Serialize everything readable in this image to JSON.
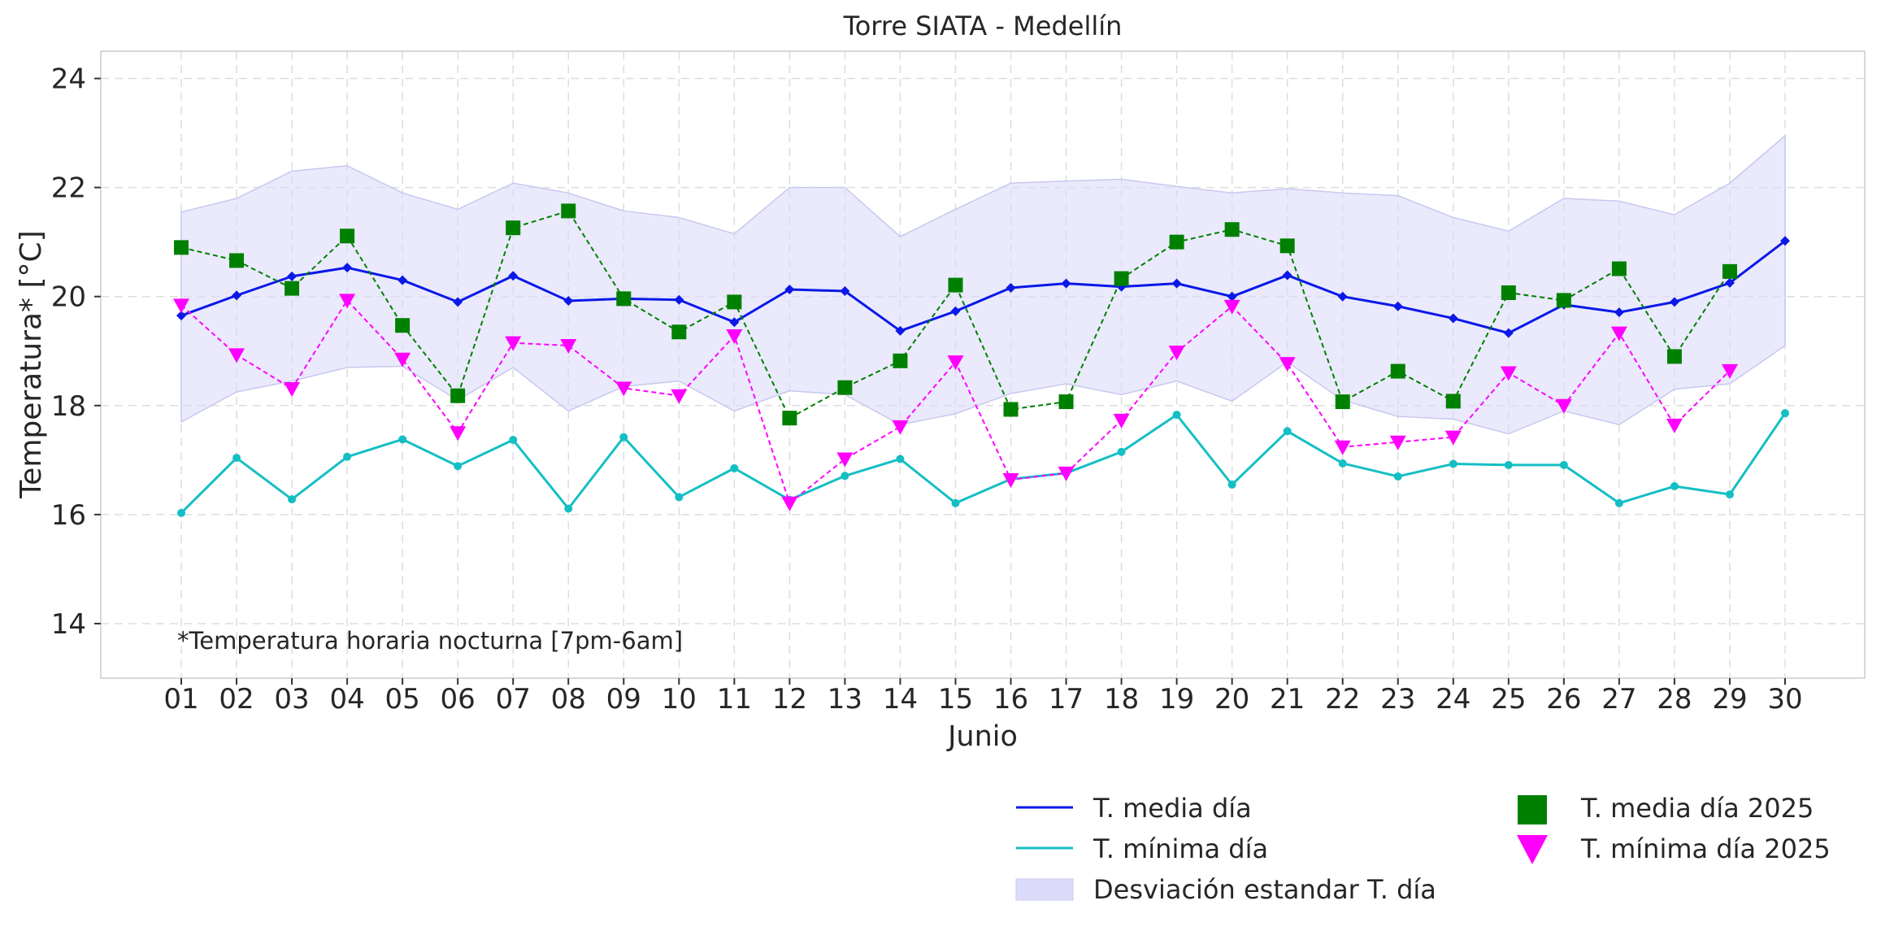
{
  "chart_data": {
    "type": "line",
    "title": "Torre SIATA - Medellín",
    "xlabel": "Junio",
    "ylabel": "Temperatura* [°C]",
    "annotation": "*Temperatura horaria nocturna [7pm-6am]",
    "ylim": [
      13,
      24.5
    ],
    "yticks": [
      14,
      16,
      18,
      20,
      22,
      24
    ],
    "grid": true,
    "legend_position": "bottom-right",
    "categories": [
      "01",
      "02",
      "03",
      "04",
      "05",
      "06",
      "07",
      "08",
      "09",
      "10",
      "11",
      "12",
      "13",
      "14",
      "15",
      "16",
      "17",
      "18",
      "19",
      "20",
      "21",
      "22",
      "23",
      "24",
      "25",
      "26",
      "27",
      "28",
      "29",
      "30"
    ],
    "band": {
      "name": "Desviación estandar T. día",
      "color": "#dcdcfa",
      "upper": [
        21.55,
        21.8,
        22.3,
        22.4,
        21.9,
        21.6,
        22.08,
        21.9,
        21.57,
        21.45,
        21.15,
        22.0,
        22.0,
        21.1,
        21.6,
        22.08,
        22.12,
        22.15,
        22.02,
        21.9,
        21.98,
        21.9,
        21.85,
        21.45,
        21.2,
        21.8,
        21.75,
        21.5,
        22.08,
        22.95
      ],
      "lower": [
        17.7,
        18.25,
        18.45,
        18.7,
        18.72,
        18.1,
        18.7,
        17.9,
        18.35,
        18.45,
        17.9,
        18.27,
        18.2,
        17.65,
        17.85,
        18.22,
        18.4,
        18.2,
        18.45,
        18.08,
        18.8,
        18.1,
        17.8,
        17.75,
        17.48,
        17.9,
        17.65,
        18.3,
        18.4,
        19.1
      ]
    },
    "series": [
      {
        "name": "T. media día",
        "style": "solid-line-diamond",
        "color": "#0b18e8",
        "values": [
          19.65,
          20.02,
          20.37,
          20.53,
          20.3,
          19.9,
          20.38,
          19.92,
          19.96,
          19.94,
          19.53,
          20.13,
          20.1,
          19.37,
          19.73,
          20.16,
          20.24,
          20.18,
          20.24,
          20.0,
          20.39,
          20.0,
          19.82,
          19.6,
          19.33,
          19.85,
          19.71,
          19.9,
          20.25,
          21.02
        ]
      },
      {
        "name": "T. mínima día",
        "style": "solid-line-dot",
        "color": "#14bfc4",
        "values": [
          16.03,
          17.04,
          16.28,
          17.06,
          17.38,
          16.89,
          17.37,
          16.11,
          17.42,
          16.32,
          16.85,
          16.27,
          16.71,
          17.02,
          16.21,
          16.65,
          16.76,
          17.15,
          17.83,
          16.55,
          17.53,
          16.94,
          16.7,
          16.93,
          16.91,
          16.91,
          16.21,
          16.52,
          16.37,
          17.86
        ]
      },
      {
        "name": "T. media día 2025",
        "style": "dashed-line-square",
        "color": "#008000",
        "values": [
          20.9,
          20.66,
          20.15,
          21.11,
          19.47,
          18.18,
          21.26,
          21.57,
          19.96,
          19.35,
          19.9,
          17.77,
          18.33,
          18.82,
          20.21,
          17.93,
          18.07,
          20.33,
          21.0,
          21.23,
          20.93,
          18.07,
          18.63,
          18.08,
          20.07,
          19.93,
          20.51,
          18.9,
          20.46,
          null
        ]
      },
      {
        "name": "T. mínima día 2025",
        "style": "dashed-line-triangle",
        "color": "#ff00ff",
        "values": [
          19.84,
          18.93,
          18.31,
          19.93,
          18.85,
          17.5,
          19.15,
          19.1,
          18.32,
          18.18,
          19.28,
          16.21,
          17.02,
          17.61,
          18.8,
          16.64,
          16.76,
          17.73,
          18.98,
          19.82,
          18.77,
          17.24,
          17.33,
          17.42,
          18.6,
          18.0,
          19.33,
          17.64,
          18.64,
          null
        ]
      }
    ]
  }
}
